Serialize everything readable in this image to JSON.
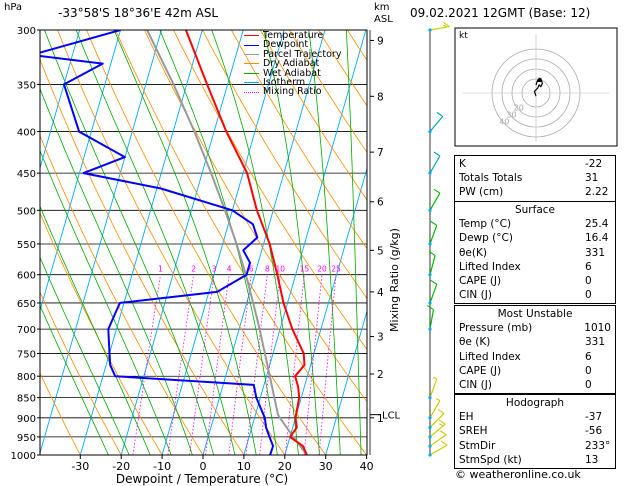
{
  "header": {
    "left_label": "hPa",
    "station": "-33°58'S  18°36'E  42m  ASL",
    "right_label_km": "km",
    "right_label_asl": "ASL",
    "date": "09.02.2021  12GMT  (Base: 12)"
  },
  "legend": [
    {
      "label": "Temperature",
      "color": "#ff0000",
      "style": "solid"
    },
    {
      "label": "Dewpoint",
      "color": "#0000ff",
      "style": "solid"
    },
    {
      "label": "Parcel Trajectory",
      "color": "#999999",
      "style": "solid"
    },
    {
      "label": "Dry Adiabat",
      "color": "#ff8c00",
      "style": "solid"
    },
    {
      "label": "Wet Adiabat",
      "color": "#00aa00",
      "style": "solid"
    },
    {
      "label": "Isotherm",
      "color": "#00aaff",
      "style": "solid"
    },
    {
      "label": "Mixing Ratio",
      "color": "#ff00ff",
      "style": "dotted"
    }
  ],
  "chart_data": {
    "type": "line",
    "xlabel": "Dewpoint / Temperature (°C)",
    "ylabel": "hPa",
    "right_axis_label": "Mixing Ratio (g/kg)",
    "x_ticks": [
      -30,
      -20,
      -10,
      0,
      10,
      20,
      30,
      40
    ],
    "xlim": [
      -35,
      40
    ],
    "pressure_ticks": [
      300,
      350,
      400,
      450,
      500,
      550,
      600,
      650,
      700,
      750,
      800,
      850,
      900,
      950,
      1000
    ],
    "ylim": [
      300,
      1000
    ],
    "y_scale": "log",
    "km_ticks": [
      {
        "label": "9",
        "p": 309
      },
      {
        "label": "8",
        "p": 362
      },
      {
        "label": "7",
        "p": 424
      },
      {
        "label": "6",
        "p": 488
      },
      {
        "label": "5",
        "p": 560
      },
      {
        "label": "4",
        "p": 630
      },
      {
        "label": "3",
        "p": 715
      },
      {
        "label": "2",
        "p": 795
      },
      {
        "label": "1",
        "p": 900
      }
    ],
    "lcl": {
      "label": "LCL",
      "p": 892
    },
    "mixing_ratio_labels": [
      "1",
      "2",
      "3",
      "4",
      "6",
      "8",
      "10",
      "15",
      "20",
      "25"
    ],
    "mixing_ratio_values": [
      1,
      2,
      3,
      4,
      6,
      8,
      10,
      15,
      20,
      25
    ],
    "temperature": {
      "name": "Temperature",
      "color": "#ff0000",
      "points": [
        [
          1000,
          25.4
        ],
        [
          975,
          23.8
        ],
        [
          950,
          20.0
        ],
        [
          925,
          21.0
        ],
        [
          900,
          20.0
        ],
        [
          850,
          19.5
        ],
        [
          825,
          18.5
        ],
        [
          800,
          17.0
        ],
        [
          775,
          18.5
        ],
        [
          750,
          17.5
        ],
        [
          700,
          13.0
        ],
        [
          650,
          9.0
        ],
        [
          600,
          5.5
        ],
        [
          550,
          1.5
        ],
        [
          500,
          -4.0
        ],
        [
          450,
          -9.0
        ],
        [
          400,
          -17.0
        ],
        [
          350,
          -25.0
        ],
        [
          300,
          -34.0
        ]
      ]
    },
    "dewpoint": {
      "name": "Dewpoint",
      "color": "#0000ff",
      "points": [
        [
          1000,
          16.4
        ],
        [
          975,
          16.5
        ],
        [
          950,
          15.0
        ],
        [
          925,
          13.5
        ],
        [
          900,
          12.5
        ],
        [
          850,
          9.0
        ],
        [
          820,
          7.5
        ],
        [
          800,
          -27.0
        ],
        [
          775,
          -29.0
        ],
        [
          750,
          -30.0
        ],
        [
          700,
          -32.0
        ],
        [
          650,
          -31.0
        ],
        [
          630,
          -8.0
        ],
        [
          600,
          -2.0
        ],
        [
          580,
          -2.0
        ],
        [
          560,
          -4.5
        ],
        [
          540,
          -2.0
        ],
        [
          520,
          -4.0
        ],
        [
          500,
          -10.0
        ],
        [
          470,
          -29.0
        ],
        [
          450,
          -49.0
        ],
        [
          430,
          -40.0
        ],
        [
          400,
          -53.0
        ],
        [
          350,
          -60.0
        ],
        [
          330,
          -52.0
        ],
        [
          322,
          -70.0
        ],
        [
          300,
          -50.0
        ]
      ]
    },
    "parcel": {
      "name": "Parcel Trajectory",
      "color": "#999999",
      "points": [
        [
          1000,
          25.4
        ],
        [
          950,
          20.8
        ],
        [
          900,
          16.2
        ],
        [
          892,
          15.5
        ],
        [
          850,
          13.4
        ],
        [
          800,
          10.8
        ],
        [
          750,
          8.0
        ],
        [
          700,
          5.0
        ],
        [
          650,
          1.6
        ],
        [
          600,
          -2.2
        ],
        [
          550,
          -6.6
        ],
        [
          500,
          -11.8
        ],
        [
          450,
          -17.8
        ],
        [
          400,
          -24.8
        ],
        [
          350,
          -33.2
        ],
        [
          300,
          -43.5
        ]
      ]
    },
    "wind": [
      {
        "p": 1000,
        "dir": 240,
        "spd": 10
      },
      {
        "p": 975,
        "dir": 235,
        "spd": 10
      },
      {
        "p": 950,
        "dir": 230,
        "spd": 15
      },
      {
        "p": 925,
        "dir": 225,
        "spd": 10
      },
      {
        "p": 900,
        "dir": 210,
        "spd": 5
      },
      {
        "p": 850,
        "dir": 200,
        "spd": 5
      },
      {
        "p": 700,
        "dir": 190,
        "spd": 10
      },
      {
        "p": 650,
        "dir": 200,
        "spd": 10
      },
      {
        "p": 600,
        "dir": 195,
        "spd": 10
      },
      {
        "p": 550,
        "dir": 200,
        "spd": 10
      },
      {
        "p": 500,
        "dir": 210,
        "spd": 10
      },
      {
        "p": 450,
        "dir": 210,
        "spd": 10
      },
      {
        "p": 400,
        "dir": 220,
        "spd": 10
      },
      {
        "p": 300,
        "dir": 260,
        "spd": 15
      }
    ],
    "hodograph": {
      "label": "kt",
      "ring_labels": [
        "20",
        "30",
        "40"
      ],
      "points": [
        [
          0,
          -2
        ],
        [
          -1,
          1
        ],
        [
          1,
          3
        ],
        [
          2,
          5
        ],
        [
          3,
          4
        ],
        [
          4,
          6
        ],
        [
          3,
          9
        ],
        [
          1,
          8
        ],
        [
          0,
          5
        ]
      ]
    }
  },
  "indices": {
    "k_label": "K",
    "k_value": "-22",
    "tt_label": "Totals Totals",
    "tt_value": "31",
    "pw_label": "PW (cm)",
    "pw_value": "2.22"
  },
  "surface": {
    "title": "Surface",
    "rows": [
      {
        "label": "Temp (°C)",
        "value": "25.4"
      },
      {
        "label": "Dewp (°C)",
        "value": "16.4"
      },
      {
        "label": "θe(K)",
        "value": "331"
      },
      {
        "label": "Lifted Index",
        "value": "6"
      },
      {
        "label": "CAPE (J)",
        "value": "0"
      },
      {
        "label": "CIN (J)",
        "value": "0"
      }
    ]
  },
  "most_unstable": {
    "title": "Most Unstable",
    "rows": [
      {
        "label": "Pressure (mb)",
        "value": "1010"
      },
      {
        "label": "θe (K)",
        "value": "331"
      },
      {
        "label": "Lifted Index",
        "value": "6"
      },
      {
        "label": "CAPE (J)",
        "value": "0"
      },
      {
        "label": "CIN (J)",
        "value": "0"
      }
    ]
  },
  "hodograph_table": {
    "title": "Hodograph",
    "rows": [
      {
        "label": "EH",
        "value": "-37"
      },
      {
        "label": "SREH",
        "value": "-56"
      },
      {
        "label": "StmDir",
        "value": "233°"
      },
      {
        "label": "StmSpd (kt)",
        "value": "13"
      }
    ]
  },
  "footer": "© weatheronline.co.uk"
}
